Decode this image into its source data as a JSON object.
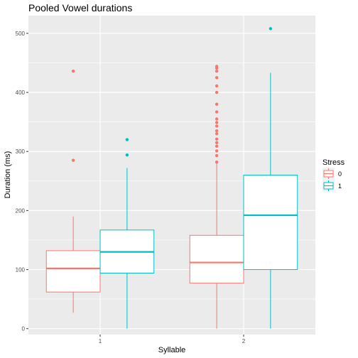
{
  "chart_data": {
    "type": "boxplot",
    "title": "Pooled Vowel durations",
    "xlabel": "Syllable",
    "ylabel": "Duration (ms)",
    "categories": [
      "1",
      "2"
    ],
    "ylim": [
      -10,
      530
    ],
    "yticks": [
      0,
      100,
      200,
      300,
      400,
      500
    ],
    "grid": true,
    "legend": {
      "title": "Stress",
      "position": "right"
    },
    "series": [
      {
        "name": "0",
        "color": "#F8766D",
        "boxes": [
          {
            "category": "1",
            "min": 27,
            "q1": 62,
            "median": 102,
            "q3": 132,
            "max": 190,
            "outliers": [
              285,
              436
            ]
          },
          {
            "category": "2",
            "min": 0,
            "q1": 77,
            "median": 112,
            "q3": 158,
            "max": 280,
            "outliers": [
              282,
              293,
              301,
              309,
              315,
              321,
              330,
              335,
              343,
              349,
              355,
              367,
              380,
              400,
              411,
              425,
              436,
              441,
              444
            ]
          }
        ]
      },
      {
        "name": "1",
        "color": "#00BFC4",
        "boxes": [
          {
            "category": "1",
            "min": 0,
            "q1": 94,
            "median": 130,
            "q3": 167,
            "max": 272,
            "outliers": [
              294,
              320
            ]
          },
          {
            "category": "2",
            "min": 0,
            "q1": 100,
            "median": 192,
            "q3": 260,
            "max": 433,
            "outliers": [
              508
            ]
          }
        ]
      }
    ]
  }
}
